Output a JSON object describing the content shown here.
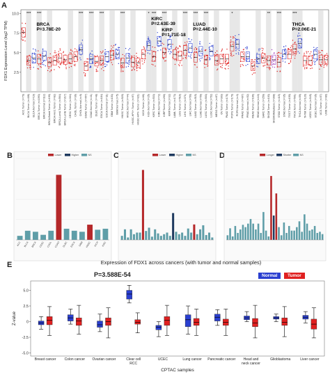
{
  "panels": {
    "A": "A",
    "B": "B",
    "C": "C",
    "D": "D",
    "E": "E"
  },
  "chart_data": [
    {
      "type": "scatter",
      "panel": "A",
      "ylabel": "FDX1 Expression Level (log2 TPM)",
      "yticks": [
        "2.5",
        "5.0",
        "7.5",
        "10.0"
      ],
      "ylim": [
        0,
        10.5
      ],
      "categories": [
        "ACC.Tumor (n=79)",
        "BLCA.Tumor (n=408)",
        "BLCA.Normal (n=19)",
        "BRCA.Tumor (n=1093)",
        "BRCA.Normal (n=112)",
        "BRCA-Basal.Tumor (n=190)",
        "BRCA-Her2.Tumor (n=82)",
        "BRCA-LumA.Tumor (n=564)",
        "BRCA-LumB.Tumor (n=217)",
        "CESC.Tumor (n=304)",
        "CHOL.Tumor (n=36)",
        "CHOL.Normal (n=9)",
        "COAD.Tumor (n=457)",
        "COAD.Normal (n=41)",
        "DLBC.Tumor (n=48)",
        "ESCA.Tumor (n=184)",
        "ESCA.Normal (n=11)",
        "GBM.Tumor (n=153)",
        "GBM.Normal (n=5)",
        "HNSC.Tumor (n=520)",
        "HNSC.Normal (n=44)",
        "HNSC-HPV+.Tumor (n=97)",
        "HNSC-HPV-.Tumor (n=421)",
        "KICH.Tumor (n=66)",
        "KICH.Normal (n=25)",
        "KIRC.Tumor (n=533)",
        "KIRC.Normal (n=72)",
        "KIRP.Tumor (n=290)",
        "KIRP.Normal (n=32)",
        "LAML.Tumor (n=173)",
        "LGG.Tumor (n=516)",
        "LIHC.Tumor (n=371)",
        "LIHC.Normal (n=50)",
        "LUAD.Tumor (n=515)",
        "LUAD.Normal (n=59)",
        "LUSC.Tumor (n=503)",
        "LUSC.Normal (n=52)",
        "MESO.Tumor (n=87)",
        "OV.Tumor (n=303)",
        "PAAD.Tumor (n=178)",
        "PCPG.Tumor (n=179)",
        "PCPG.Normal (n=3)",
        "PRAD.Tumor (n=497)",
        "PRAD.Normal (n=52)",
        "READ.Tumor (n=166)",
        "READ.Normal (n=10)",
        "SARC.Tumor (n=259)",
        "SKCM.Tumor (n=103)",
        "SKCM.Metastasis (n=368)",
        "STAD.Tumor (n=415)",
        "STAD.Normal (n=35)",
        "TGCT.Tumor (n=150)",
        "THCA.Tumor (n=501)",
        "THCA.Normal (n=59)",
        "THYM.Tumor (n=120)",
        "UCEC.Tumor (n=545)",
        "UCEC.Normal (n=35)",
        "UCS.Tumor (n=57)",
        "UVM.Tumor (n=80)"
      ],
      "medians": [
        7.6,
        4.0,
        4.3,
        4.2,
        4.6,
        3.8,
        4.0,
        4.3,
        4.1,
        4.2,
        4.5,
        5.4,
        3.3,
        4.2,
        3.9,
        4.0,
        4.5,
        4.7,
        4.8,
        3.7,
        4.3,
        3.8,
        3.7,
        4.8,
        5.9,
        4.5,
        6.5,
        5.0,
        6.1,
        4.8,
        4.6,
        5.3,
        5.6,
        4.4,
        5.2,
        4.1,
        5.2,
        4.0,
        4.2,
        4.2,
        5.8,
        6.1,
        4.5,
        4.5,
        3.3,
        4.2,
        4.3,
        4.0,
        4.1,
        3.8,
        4.8,
        4.8,
        5.5,
        6.2,
        4.0,
        4.0,
        4.8,
        4.1,
        4.1
      ],
      "significance": [
        "",
        "***",
        "",
        "***",
        "",
        "",
        "",
        "",
        "",
        "",
        "",
        "***",
        "",
        "***",
        "",
        "***",
        "",
        "",
        "",
        "***",
        "",
        "",
        "",
        "",
        "*",
        "***",
        "",
        "***",
        "",
        "",
        "",
        "***",
        "",
        "***",
        "",
        "***",
        "",
        "",
        "",
        "",
        "*",
        "",
        "",
        "",
        "",
        "",
        "",
        "**",
        "",
        "***",
        "",
        "",
        "***",
        "",
        "",
        "",
        "",
        "",
        ""
      ],
      "annotations": [
        {
          "label": "BRCA",
          "pvalue": "P=3.78E-20"
        },
        {
          "label": "KIRC",
          "pvalue": "P=2.63E-39"
        },
        {
          "label": "KIRP",
          "pvalue": "P=1.71E-18"
        },
        {
          "label": "LUAD",
          "pvalue": "P=2.44E-10"
        },
        {
          "label": "THCA",
          "pvalue": "P=2.06E-21"
        }
      ]
    },
    {
      "type": "bar",
      "panel": "B",
      "legend": [
        "Lower",
        "Higher",
        "NS"
      ],
      "categories": [
        "ACC",
        "BLCA",
        "BRCA",
        "CESC",
        "CHOL",
        "COAD",
        "DLBC",
        "ESCA",
        "GBM",
        "HNSC",
        "KICH",
        "KIRC"
      ],
      "values": [
        0.4,
        0.9,
        0.8,
        0.5,
        0.9,
        6.4,
        1.1,
        0.9,
        0.8,
        1.5,
        1.0,
        1.1
      ],
      "status": [
        "NS",
        "NS",
        "NS",
        "NS",
        "NS",
        "Lower",
        "NS",
        "NS",
        "NS",
        "Lower",
        "NS",
        "NS"
      ],
      "ylim": [
        0,
        8
      ]
    },
    {
      "type": "bar",
      "panel": "C",
      "legend": [
        "Lower",
        "Higher",
        "NS"
      ],
      "values": [
        0.5,
        1.3,
        0.3,
        1.3,
        0.7,
        0.9,
        0.9,
        8.6,
        1.1,
        1.5,
        0.4,
        1.3,
        0.8,
        0.5,
        0.7,
        0.9,
        0.5,
        3.3,
        1.0,
        0.7,
        0.9,
        0.5,
        1.4,
        0.9,
        1.9,
        0.7,
        1.3,
        1.8,
        0.6,
        0.9,
        0.3
      ],
      "status": [
        "NS",
        "NS",
        "NS",
        "NS",
        "NS",
        "NS",
        "NS",
        "Lower",
        "NS",
        "NS",
        "NS",
        "NS",
        "NS",
        "NS",
        "NS",
        "NS",
        "NS",
        "Higher",
        "NS",
        "NS",
        "NS",
        "NS",
        "NS",
        "NS",
        "Lower",
        "NS",
        "NS",
        "NS",
        "NS",
        "NS",
        "NS"
      ],
      "ylim": [
        0,
        10
      ]
    },
    {
      "type": "bar",
      "panel": "D",
      "legend": [
        "Longer",
        "Shorter",
        "NS"
      ],
      "values": [
        0.4,
        1.0,
        0.3,
        1.2,
        0.6,
        0.9,
        1.3,
        1.1,
        1.4,
        1.8,
        1.4,
        0.9,
        1.4,
        0.6,
        2.4,
        0.8,
        0.3,
        5.5,
        2.1,
        4.0,
        1.1,
        0.4,
        1.5,
        0.6,
        1.2,
        0.8,
        0.8,
        1.1,
        1.6,
        0.7,
        2.2,
        1.4,
        0.8,
        0.9,
        1.2,
        0.6,
        0.7,
        0.5
      ],
      "status": [
        "NS",
        "NS",
        "NS",
        "NS",
        "NS",
        "NS",
        "NS",
        "NS",
        "NS",
        "NS",
        "NS",
        "NS",
        "NS",
        "NS",
        "NS",
        "NS",
        "NS",
        "Longer",
        "Shorter",
        "Longer",
        "NS",
        "NS",
        "NS",
        "NS",
        "NS",
        "NS",
        "NS",
        "NS",
        "NS",
        "NS",
        "NS",
        "NS",
        "NS",
        "NS",
        "NS",
        "NS",
        "NS",
        "NS"
      ],
      "ylim": [
        0,
        7
      ]
    },
    {
      "type": "box",
      "panel": "E",
      "title": "Expression of FDX1 across cancers (with tumor and normal samples)",
      "pvalue": "P=3.588E-54",
      "legend": [
        "Normal",
        "Tumor"
      ],
      "xlabel": "CPTAC samples",
      "ylabel": "Z-value",
      "yticks": [
        "-5.0",
        "-2.5",
        "0",
        "2.5",
        "5.0"
      ],
      "ylim": [
        -5.5,
        6.5
      ],
      "categories": [
        "Breast cancer",
        "Colon cancer",
        "Ovarian cancer",
        "Clear cell RCC",
        "UCEC",
        "Lung cancer",
        "Pancreatic cancer",
        "Head and neck cancer",
        "Glioblastoma",
        "Liver cancer"
      ],
      "normal": [
        {
          "min": -1.2,
          "q1": -0.5,
          "median": -0.2,
          "q3": 0.1,
          "max": 0.8
        },
        {
          "min": -0.4,
          "q1": 0.1,
          "median": 0.6,
          "q3": 1.1,
          "max": 2.0
        },
        {
          "min": -1.6,
          "q1": -0.9,
          "median": -0.5,
          "q3": 0.1,
          "max": 1.2
        },
        {
          "min": 3.0,
          "q1": 3.6,
          "median": 4.4,
          "q3": 5.0,
          "max": 5.8
        },
        {
          "min": -2.4,
          "q1": -1.3,
          "median": -0.9,
          "q3": -0.6,
          "max": 0.0
        },
        {
          "min": -2.0,
          "q1": -0.8,
          "median": 0.3,
          "q3": 1.1,
          "max": 2.5
        },
        {
          "min": -0.6,
          "q1": 0.1,
          "median": 0.7,
          "q3": 1.2,
          "max": 1.9
        },
        {
          "min": 0.0,
          "q1": 0.3,
          "median": 0.6,
          "q3": 0.9,
          "max": 1.6
        },
        {
          "min": 0.0,
          "q1": 0.4,
          "median": 0.6,
          "q3": 0.8,
          "max": 1.2
        },
        {
          "min": -0.2,
          "q1": 0.4,
          "median": 0.7,
          "q3": 1.0,
          "max": 1.6
        }
      ],
      "tumor": [
        {
          "min": -2.2,
          "q1": -0.5,
          "median": 0.2,
          "q3": 0.8,
          "max": 2.4
        },
        {
          "min": -2.0,
          "q1": -0.6,
          "median": 0.1,
          "q3": 0.6,
          "max": 2.6
        },
        {
          "min": -2.6,
          "q1": -0.6,
          "median": 0.0,
          "q3": 0.6,
          "max": 2.2
        },
        {
          "min": -1.8,
          "q1": -0.4,
          "median": -0.1,
          "q3": 0.3,
          "max": 1.4
        },
        {
          "min": -2.2,
          "q1": -0.6,
          "median": 0.2,
          "q3": 0.8,
          "max": 2.6
        },
        {
          "min": -2.2,
          "q1": -0.6,
          "median": -0.1,
          "q3": 0.5,
          "max": 2.0
        },
        {
          "min": -2.2,
          "q1": -0.6,
          "median": -0.1,
          "q3": 0.4,
          "max": 2.0
        },
        {
          "min": -2.6,
          "q1": -0.8,
          "median": -0.2,
          "q3": 0.5,
          "max": 2.6
        },
        {
          "min": -2.4,
          "q1": -0.6,
          "median": -0.1,
          "q3": 0.6,
          "max": 2.4
        },
        {
          "min": -2.6,
          "q1": -1.2,
          "median": -0.4,
          "q3": 0.4,
          "max": 2.2
        }
      ]
    }
  ],
  "colors": {
    "tumor": "#e02020",
    "normal": "#2a3fd0",
    "bar_red": "#b5282a",
    "bar_navy": "#1f3a5f",
    "bar_teal": "#5f9ea8",
    "shade": "#d4d4d4",
    "metastasis": "#a040c0"
  }
}
